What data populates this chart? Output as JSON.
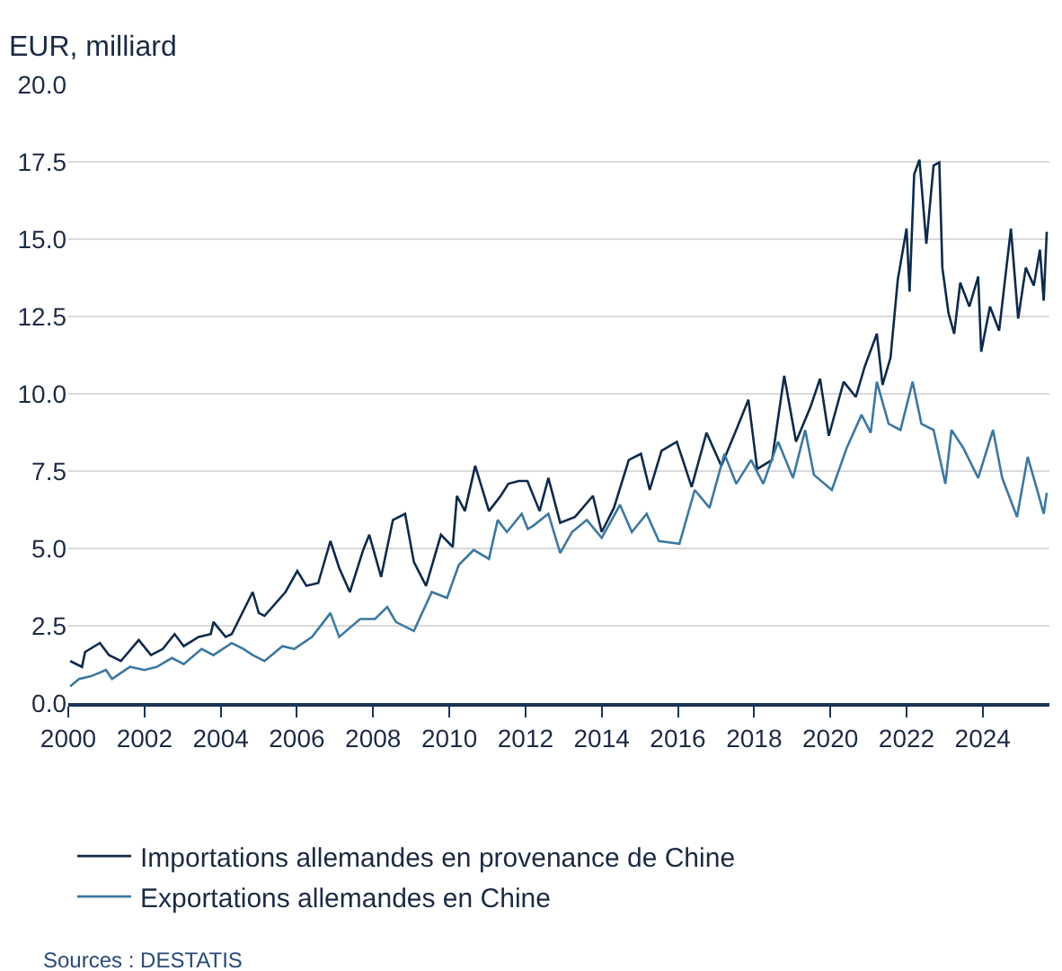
{
  "chart_data": {
    "type": "line",
    "ylabel": "EUR, milliard",
    "xlim": [
      2000,
      2025.75
    ],
    "xticks": [
      2000,
      2002,
      2004,
      2006,
      2008,
      2010,
      2012,
      2014,
      2016,
      2018,
      2020,
      2022,
      2024
    ],
    "ylim": [
      0,
      20
    ],
    "yticks": [
      {
        "value": 0,
        "label": "0.0"
      },
      {
        "value": 2.5,
        "label": "2.5"
      },
      {
        "value": 5,
        "label": "5.0"
      },
      {
        "value": 7.5,
        "label": "7.5"
      },
      {
        "value": 10,
        "label": "10.0"
      },
      {
        "value": 12.5,
        "label": "12.5"
      },
      {
        "value": 15,
        "label": "15.0"
      },
      {
        "value": 17.5,
        "label": "17.5"
      },
      {
        "value": 20,
        "label": "20.0"
      }
    ],
    "grid": "y",
    "legend": "bottom",
    "marker": "none",
    "line_style": "solid",
    "annotations": [
      "Sources : DESTATIS"
    ],
    "series": [
      {
        "name": "Importations allemandes en provenance de Chine",
        "color": "#0d2a4a",
        "x": [
          2000.05,
          2000.36,
          2000.44,
          2000.83,
          2001.07,
          2001.38,
          2001.85,
          2002.17,
          2002.48,
          2002.79,
          2003.03,
          2003.42,
          2003.74,
          2003.81,
          2004.13,
          2004.29,
          2004.84,
          2005.0,
          2005.15,
          2005.7,
          2006.01,
          2006.25,
          2006.56,
          2006.88,
          2007.11,
          2007.39,
          2007.74,
          2007.9,
          2008.21,
          2008.52,
          2008.84,
          2009.07,
          2009.39,
          2009.78,
          2010.09,
          2010.2,
          2010.41,
          2010.68,
          2011.04,
          2011.35,
          2011.55,
          2011.82,
          2012.05,
          2012.37,
          2012.6,
          2012.91,
          2013.3,
          2013.77,
          2014.0,
          2014.32,
          2014.71,
          2015.03,
          2015.26,
          2015.57,
          2015.97,
          2016.36,
          2016.75,
          2017.14,
          2017.53,
          2017.85,
          2018.08,
          2018.47,
          2018.79,
          2019.1,
          2019.49,
          2019.73,
          2019.96,
          2020.35,
          2020.67,
          2020.9,
          2021.22,
          2021.37,
          2021.58,
          2021.77,
          2022.0,
          2022.08,
          2022.2,
          2022.34,
          2022.52,
          2022.71,
          2022.86,
          2022.94,
          2023.1,
          2023.25,
          2023.41,
          2023.65,
          2023.88,
          2023.96,
          2024.19,
          2024.43,
          2024.74,
          2024.93,
          2025.13,
          2025.34,
          2025.5,
          2025.6,
          2025.68
        ],
        "values": [
          1.36,
          1.17,
          1.65,
          1.94,
          1.55,
          1.36,
          2.04,
          1.55,
          1.75,
          2.23,
          1.84,
          2.14,
          2.23,
          2.62,
          2.14,
          2.23,
          3.59,
          2.91,
          2.82,
          3.59,
          4.27,
          3.79,
          3.88,
          5.24,
          4.37,
          3.59,
          4.95,
          5.44,
          4.08,
          5.92,
          6.12,
          4.56,
          3.79,
          5.44,
          5.05,
          6.7,
          6.21,
          7.67,
          6.21,
          6.7,
          7.09,
          7.18,
          7.18,
          6.21,
          7.28,
          5.83,
          6.02,
          6.7,
          5.53,
          6.31,
          7.86,
          8.06,
          6.89,
          8.16,
          8.45,
          6.99,
          8.74,
          7.67,
          8.83,
          9.81,
          7.57,
          7.86,
          10.58,
          8.45,
          9.61,
          10.49,
          8.64,
          10.39,
          9.9,
          10.87,
          11.94,
          10.29,
          11.17,
          13.69,
          15.34,
          13.3,
          17.09,
          17.57,
          14.85,
          17.38,
          17.48,
          14.08,
          12.62,
          11.94,
          13.59,
          12.82,
          13.79,
          11.36,
          12.82,
          12.04,
          15.34,
          12.43,
          14.08,
          13.5,
          14.66,
          13.01,
          15.24
        ]
      },
      {
        "name": "Exportations allemandes en Chine",
        "color": "#3d78a0",
        "x": [
          2000.05,
          2000.28,
          2000.6,
          2000.99,
          2001.15,
          2001.62,
          2002.0,
          2002.32,
          2002.72,
          2003.03,
          2003.5,
          2003.81,
          2004.29,
          2004.6,
          2004.84,
          2005.15,
          2005.62,
          2005.93,
          2006.4,
          2006.88,
          2007.11,
          2007.66,
          2008.05,
          2008.37,
          2008.6,
          2009.07,
          2009.54,
          2009.94,
          2010.25,
          2010.64,
          2011.04,
          2011.27,
          2011.51,
          2011.9,
          2012.06,
          2012.2,
          2012.6,
          2012.91,
          2013.22,
          2013.61,
          2014.0,
          2014.48,
          2014.79,
          2015.18,
          2015.5,
          2016.04,
          2016.44,
          2016.83,
          2017.22,
          2017.53,
          2017.92,
          2018.24,
          2018.63,
          2019.02,
          2019.34,
          2019.57,
          2020.04,
          2020.43,
          2020.82,
          2021.06,
          2021.22,
          2021.53,
          2021.84,
          2022.16,
          2022.39,
          2022.71,
          2023.02,
          2023.18,
          2023.49,
          2023.88,
          2024.27,
          2024.51,
          2024.9,
          2025.18,
          2025.45,
          2025.6,
          2025.68
        ],
        "values": [
          0.54,
          0.78,
          0.87,
          1.07,
          0.78,
          1.17,
          1.07,
          1.17,
          1.46,
          1.26,
          1.75,
          1.55,
          1.94,
          1.75,
          1.55,
          1.36,
          1.84,
          1.75,
          2.14,
          2.91,
          2.14,
          2.72,
          2.72,
          3.11,
          2.62,
          2.33,
          3.59,
          3.4,
          4.47,
          4.95,
          4.66,
          5.92,
          5.53,
          6.12,
          5.63,
          5.73,
          6.12,
          4.85,
          5.53,
          5.92,
          5.34,
          6.41,
          5.53,
          6.12,
          5.24,
          5.15,
          6.89,
          6.31,
          8.06,
          7.09,
          7.86,
          7.09,
          8.45,
          7.28,
          8.83,
          7.38,
          6.89,
          8.25,
          9.32,
          8.74,
          10.39,
          9.03,
          8.83,
          10.39,
          9.03,
          8.83,
          7.09,
          8.83,
          8.25,
          7.28,
          8.83,
          7.28,
          6.02,
          7.96,
          6.8,
          6.12,
          6.8
        ]
      }
    ]
  }
}
